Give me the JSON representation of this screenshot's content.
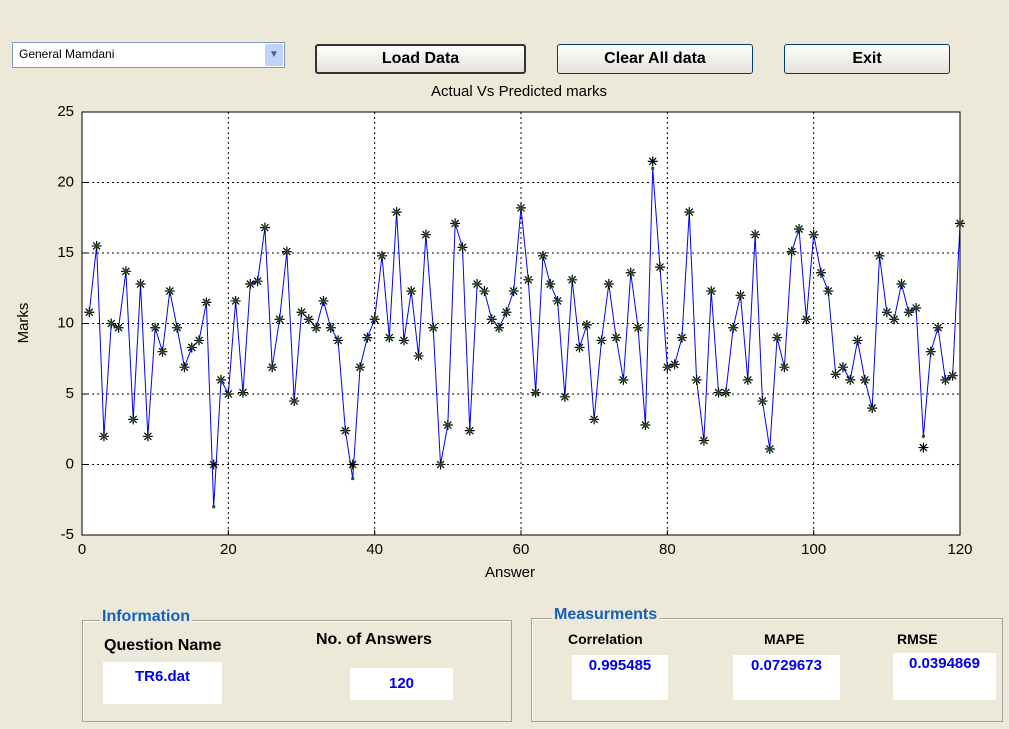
{
  "controls": {
    "dropdown": "General Mamdani",
    "buttons": [
      "Load Data",
      "Clear All data",
      "Exit"
    ]
  },
  "chart_data": {
    "type": "line",
    "title": "Actual Vs Predicted marks",
    "xlabel": "Answer",
    "ylabel": "Marks",
    "x": [
      1,
      2,
      3,
      4,
      5,
      6,
      7,
      8,
      9,
      10,
      11,
      12,
      13,
      14,
      15,
      16,
      17,
      18,
      19,
      20,
      21,
      22,
      23,
      24,
      25,
      26,
      27,
      28,
      29,
      30,
      31,
      32,
      33,
      34,
      35,
      36,
      37,
      38,
      39,
      40,
      41,
      42,
      43,
      44,
      45,
      46,
      47,
      48,
      49,
      50,
      51,
      52,
      53,
      54,
      55,
      56,
      57,
      58,
      59,
      60,
      61,
      62,
      63,
      64,
      65,
      66,
      67,
      68,
      69,
      70,
      71,
      72,
      73,
      74,
      75,
      76,
      77,
      78,
      79,
      80,
      81,
      82,
      83,
      84,
      85,
      86,
      87,
      88,
      89,
      90,
      91,
      92,
      93,
      94,
      95,
      96,
      97,
      98,
      99,
      100,
      101,
      102,
      103,
      104,
      105,
      106,
      107,
      108,
      109,
      110,
      111,
      112,
      113,
      114,
      115,
      116,
      117,
      118,
      119,
      120
    ],
    "series": [
      {
        "color": "#000000",
        "marker": "asterisk",
        "values": [
          10.8,
          15.5,
          2,
          10,
          9.7,
          13.7,
          3.2,
          12.8,
          2,
          9.7,
          8,
          12.3,
          9.7,
          6.9,
          8.3,
          8.8,
          11.5,
          0,
          6,
          5,
          11.6,
          5.1,
          12.8,
          13,
          16.8,
          6.9,
          10.3,
          15.1,
          4.5,
          10.8,
          10.3,
          9.7,
          11.6,
          9.7,
          8.8,
          2.4,
          0,
          6.9,
          9,
          10.3,
          14.8,
          9,
          17.9,
          8.8,
          12.3,
          7.7,
          16.3,
          9.7,
          0,
          2.8,
          17.1,
          15.4,
          2.4,
          12.8,
          12.3,
          10.3,
          9.7,
          10.8,
          12.3,
          18.2,
          13.1,
          5.1,
          14.8,
          12.8,
          11.6,
          4.8,
          13.1,
          8.3,
          9.9,
          3.2,
          8.8,
          12.8,
          9,
          6,
          13.6,
          9.7,
          2.8,
          21.5,
          14,
          6.9,
          7.1,
          9,
          17.9,
          6,
          1.7,
          12.3,
          5.1,
          5.1,
          9.7,
          12,
          6,
          16.3,
          4.5,
          1.1,
          9,
          6.9,
          15.1,
          16.7,
          10.3,
          16.3,
          13.6,
          12.3,
          6.4,
          6.9,
          6,
          8.8,
          6,
          4,
          14.8,
          10.8,
          10.3,
          12.8,
          10.8,
          11.1,
          1.2,
          8,
          9.7,
          6,
          6.3,
          17.1
        ]
      },
      {
        "color": "#0000ff",
        "marker": "square",
        "values": [
          10.8,
          15.5,
          2,
          10,
          9.7,
          13.7,
          3.2,
          12.8,
          2,
          9.7,
          8,
          12.3,
          9.7,
          6.9,
          8.3,
          8.8,
          11.5,
          -3,
          6,
          5,
          11.6,
          5.1,
          12.8,
          13,
          16.8,
          6.9,
          10.3,
          15.1,
          4.5,
          10.8,
          10.3,
          9.7,
          11.6,
          9.7,
          8.8,
          2.4,
          -1,
          6.9,
          9,
          10.3,
          14.8,
          9,
          17.9,
          8.8,
          12.3,
          7.7,
          16.3,
          9.7,
          0,
          2.8,
          17.1,
          15.4,
          2.4,
          12.8,
          12.3,
          10.3,
          9.7,
          10.8,
          12.3,
          18.2,
          13.1,
          5.1,
          14.8,
          12.8,
          11.6,
          4.8,
          13.1,
          8.3,
          9.9,
          3.2,
          8.8,
          12.8,
          9,
          6,
          13.6,
          9.7,
          2.8,
          21,
          14,
          6.9,
          7.1,
          9,
          17.9,
          6,
          1.7,
          12.3,
          5.1,
          5.1,
          9.7,
          12,
          6,
          16.3,
          4.5,
          1.1,
          9,
          6.9,
          15.1,
          16.7,
          10.3,
          16.3,
          13.6,
          12.3,
          6.4,
          6.9,
          6,
          8.8,
          6,
          4,
          14.8,
          10.8,
          10.3,
          12.8,
          10.8,
          11.1,
          2,
          8,
          9.7,
          6,
          6.3,
          17.1
        ]
      }
    ],
    "xlim": [
      0,
      120
    ],
    "xticks": [
      0,
      20,
      40,
      60,
      80,
      100,
      120
    ],
    "ylim": [
      -5,
      25
    ],
    "yticks": [
      -5,
      0,
      5,
      10,
      15,
      20,
      25
    ],
    "grid": true
  },
  "information": {
    "title": "Information",
    "question_label": "Question Name",
    "question_value": "TR6.dat",
    "answers_label": "No. of Answers",
    "answers_value": 120
  },
  "measurements": {
    "title": "Measurments",
    "items": [
      {
        "label": "Correlation",
        "value": 0.995485
      },
      {
        "label": "MAPE",
        "value": 0.0729673
      },
      {
        "label": "RMSE",
        "value": 0.0394869
      }
    ]
  }
}
